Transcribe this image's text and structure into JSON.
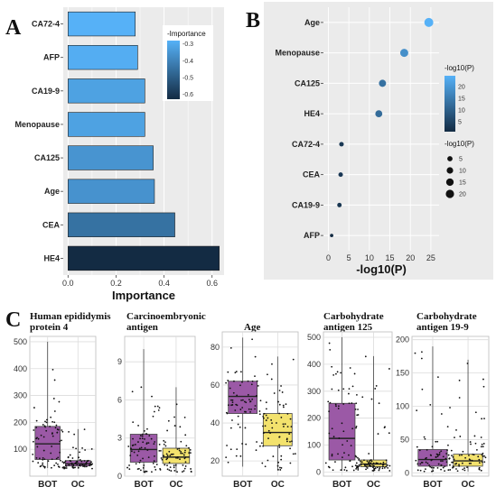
{
  "panels": {
    "a": "A",
    "b": "B",
    "c": "C"
  },
  "chart_data": [
    {
      "id": "A",
      "type": "bar",
      "orientation": "horizontal",
      "categories": [
        "CA72-4",
        "AFP",
        "CA19-9",
        "Menopause",
        "CA125",
        "Age",
        "CEA",
        "HE4"
      ],
      "values": [
        0.28,
        0.29,
        0.32,
        0.32,
        0.355,
        0.36,
        0.445,
        0.63
      ],
      "xlabel": "Importance",
      "xlim": [
        -0.02,
        0.65
      ],
      "xticks": [
        "0.0",
        "0.2",
        "0.4",
        "0.6"
      ],
      "xtick_values": [
        0,
        0.2,
        0.4,
        0.6
      ],
      "legend": {
        "title": "-Importance",
        "ticks": [
          "-0.3",
          "-0.4",
          "-0.5",
          "-0.6"
        ],
        "tick_values": [
          -0.3,
          -0.4,
          -0.5,
          -0.6
        ],
        "range": [
          -0.63,
          -0.28
        ],
        "placement": "top-right"
      },
      "colors": {
        "low": "#56b1f7",
        "high": "#132b43",
        "panel_bg": "#ebebeb"
      },
      "grid": true
    },
    {
      "id": "B",
      "type": "scatter",
      "categories": [
        "Age",
        "Menopause",
        "CA125",
        "HE4",
        "CA72-4",
        "CEA",
        "CA19-9",
        "AFP"
      ],
      "values": [
        24.5,
        18.5,
        13.2,
        12.3,
        3.2,
        3.0,
        2.7,
        0.8
      ],
      "xlabel": "-log10(P)",
      "xlim": [
        -1.2,
        27
      ],
      "xticks": [
        "0",
        "5",
        "10",
        "15",
        "20",
        "25"
      ],
      "xtick_values": [
        0,
        5,
        10,
        15,
        20,
        25
      ],
      "color_legend": {
        "title": "-log10(P)",
        "ticks": [
          "20",
          "15",
          "10",
          "5"
        ],
        "tick_values": [
          20,
          15,
          10,
          5
        ],
        "range": [
          0.8,
          24.5
        ]
      },
      "size_legend": {
        "title": "-log10(P)",
        "ticks": [
          "5",
          "10",
          "15",
          "20"
        ],
        "tick_values": [
          5,
          10,
          15,
          20
        ]
      },
      "grid": true
    },
    {
      "id": "C",
      "type": "box",
      "groups": [
        "BOT",
        "OC"
      ],
      "plots": [
        {
          "title_lines": [
            "Human epididymis",
            "protein 4"
          ],
          "yticks": [
            "100",
            "200",
            "300",
            "400",
            "500"
          ],
          "ytick_values": [
            100,
            200,
            300,
            400,
            500
          ],
          "ylim": [
            0,
            520
          ],
          "boxes": [
            {
              "group": "BOT",
              "min": 30,
              "q1": 62,
              "median": 120,
              "q3": 185,
              "max": 500,
              "color": "#9b59a6"
            },
            {
              "group": "OC",
              "min": 28,
              "q1": 38,
              "median": 46,
              "q3": 58,
              "max": 175,
              "color": "#9b59a6"
            }
          ]
        },
        {
          "title_lines": [
            "Carcinoembryonic",
            "antigen"
          ],
          "yticks": [
            "0",
            "3",
            "6",
            "9"
          ],
          "ytick_values": [
            0,
            3,
            6,
            9
          ],
          "ylim": [
            0,
            11
          ],
          "boxes": [
            {
              "group": "BOT",
              "min": 0.3,
              "q1": 1.1,
              "median": 2.1,
              "q3": 3.3,
              "max": 10,
              "color": "#9b59a6"
            },
            {
              "group": "OC",
              "min": 0.3,
              "q1": 1.0,
              "median": 1.5,
              "q3": 2.2,
              "max": 7,
              "color": "#f3e26d"
            }
          ]
        },
        {
          "title_lines": [
            "Age"
          ],
          "yticks": [
            "20",
            "40",
            "60",
            "80"
          ],
          "ytick_values": [
            20,
            40,
            60,
            80
          ],
          "ylim": [
            12,
            88
          ],
          "boxes": [
            {
              "group": "BOT",
              "min": 17,
              "q1": 45,
              "median": 54,
              "q3": 62,
              "max": 85,
              "color": "#9b59a6"
            },
            {
              "group": "OC",
              "min": 15,
              "q1": 28,
              "median": 35,
              "q3": 45,
              "max": 75,
              "color": "#f3e26d"
            }
          ]
        },
        {
          "title_lines": [
            "Carbohydrate",
            "antigen 125"
          ],
          "yticks": [
            "0",
            "100",
            "200",
            "300",
            "400",
            "500"
          ],
          "ytick_values": [
            0,
            100,
            200,
            300,
            400,
            500
          ],
          "ylim": [
            -15,
            520
          ],
          "boxes": [
            {
              "group": "BOT",
              "min": 5,
              "q1": 45,
              "median": 125,
              "q3": 255,
              "max": 500,
              "color": "#9b59a6"
            },
            {
              "group": "OC",
              "min": 5,
              "q1": 20,
              "median": 30,
              "q3": 45,
              "max": 430,
              "color": "#f3e26d"
            }
          ]
        },
        {
          "title_lines": [
            "Carbohydrate",
            "antigen 19-9"
          ],
          "yticks": [
            "0",
            "50",
            "100",
            "150",
            "200"
          ],
          "ytick_values": [
            0,
            50,
            100,
            150,
            200
          ],
          "ylim": [
            -5,
            205
          ],
          "boxes": [
            {
              "group": "BOT",
              "min": 2,
              "q1": 10,
              "median": 20,
              "q3": 35,
              "max": 190,
              "color": "#9b59a6"
            },
            {
              "group": "OC",
              "min": 2,
              "q1": 10,
              "median": 18,
              "q3": 28,
              "max": 170,
              "color": "#f3e26d"
            }
          ]
        }
      ]
    }
  ]
}
